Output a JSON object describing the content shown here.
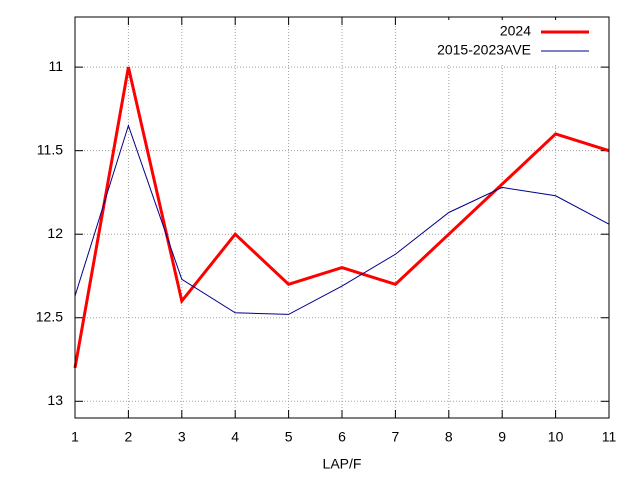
{
  "chart_data": {
    "type": "line",
    "x_label": "LAP/F",
    "x": [
      1,
      2,
      3,
      4,
      5,
      6,
      7,
      8,
      9,
      10,
      11
    ],
    "series": [
      {
        "name": "2024",
        "color": "#ff0000",
        "values": [
          12.8,
          11.0,
          12.4,
          12.0,
          12.3,
          12.2,
          12.3,
          12.0,
          11.7,
          11.4,
          11.5
        ]
      },
      {
        "name": "2015-2023AVE",
        "color": "#00008b",
        "values": [
          12.37,
          11.35,
          12.27,
          12.47,
          12.48,
          12.31,
          12.12,
          11.87,
          11.72,
          11.77,
          11.94
        ]
      }
    ],
    "xlim": [
      1,
      11
    ],
    "xticks": [
      1,
      2,
      3,
      4,
      5,
      6,
      7,
      8,
      9,
      10,
      11
    ],
    "ylim": [
      10.7,
      13.1
    ],
    "yticks": [
      11,
      11.5,
      12,
      12.5,
      13
    ],
    "y_inverted": true,
    "grid": true,
    "legend": "top-right"
  }
}
